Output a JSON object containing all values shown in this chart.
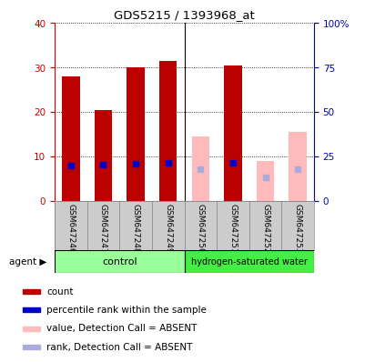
{
  "title": "GDS5215 / 1393968_at",
  "samples": [
    "GSM647246",
    "GSM647247",
    "GSM647248",
    "GSM647249",
    "GSM647250",
    "GSM647251",
    "GSM647252",
    "GSM647253"
  ],
  "count_values": [
    28,
    20.5,
    30,
    31.5,
    null,
    30.5,
    null,
    null
  ],
  "rank_values": [
    20,
    20.5,
    21,
    21.5,
    null,
    21.5,
    null,
    null
  ],
  "count_absent": [
    null,
    null,
    null,
    null,
    14.5,
    null,
    9.0,
    15.5
  ],
  "rank_absent": [
    null,
    null,
    null,
    null,
    18.0,
    null,
    13.5,
    18.0
  ],
  "ylim_left": [
    0,
    40
  ],
  "ylim_right": [
    0,
    100
  ],
  "yticks_left": [
    0,
    10,
    20,
    30,
    40
  ],
  "yticks_right": [
    0,
    25,
    50,
    75,
    100
  ],
  "ylabel_left_color": "#cc0000",
  "ylabel_right_color": "#0000bb",
  "bar_width": 0.55,
  "count_color": "#bb0000",
  "rank_color": "#0000cc",
  "count_absent_color": "#ffbbbb",
  "rank_absent_color": "#aaaadd",
  "control_color": "#99ff99",
  "hydrogen_color": "#44ee44",
  "n_control": 4,
  "n_total": 8,
  "background_color": "#ffffff",
  "plot_bg": "#ffffff",
  "xlabel_bg": "#cccccc"
}
